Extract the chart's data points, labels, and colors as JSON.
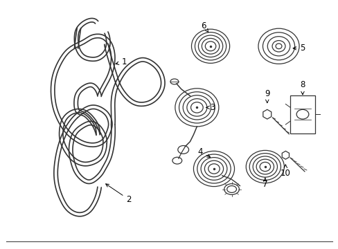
{
  "bg_color": "#ffffff",
  "line_color": "#333333",
  "text_color": "#000000",
  "fig_width": 4.89,
  "fig_height": 3.6,
  "dpi": 100
}
